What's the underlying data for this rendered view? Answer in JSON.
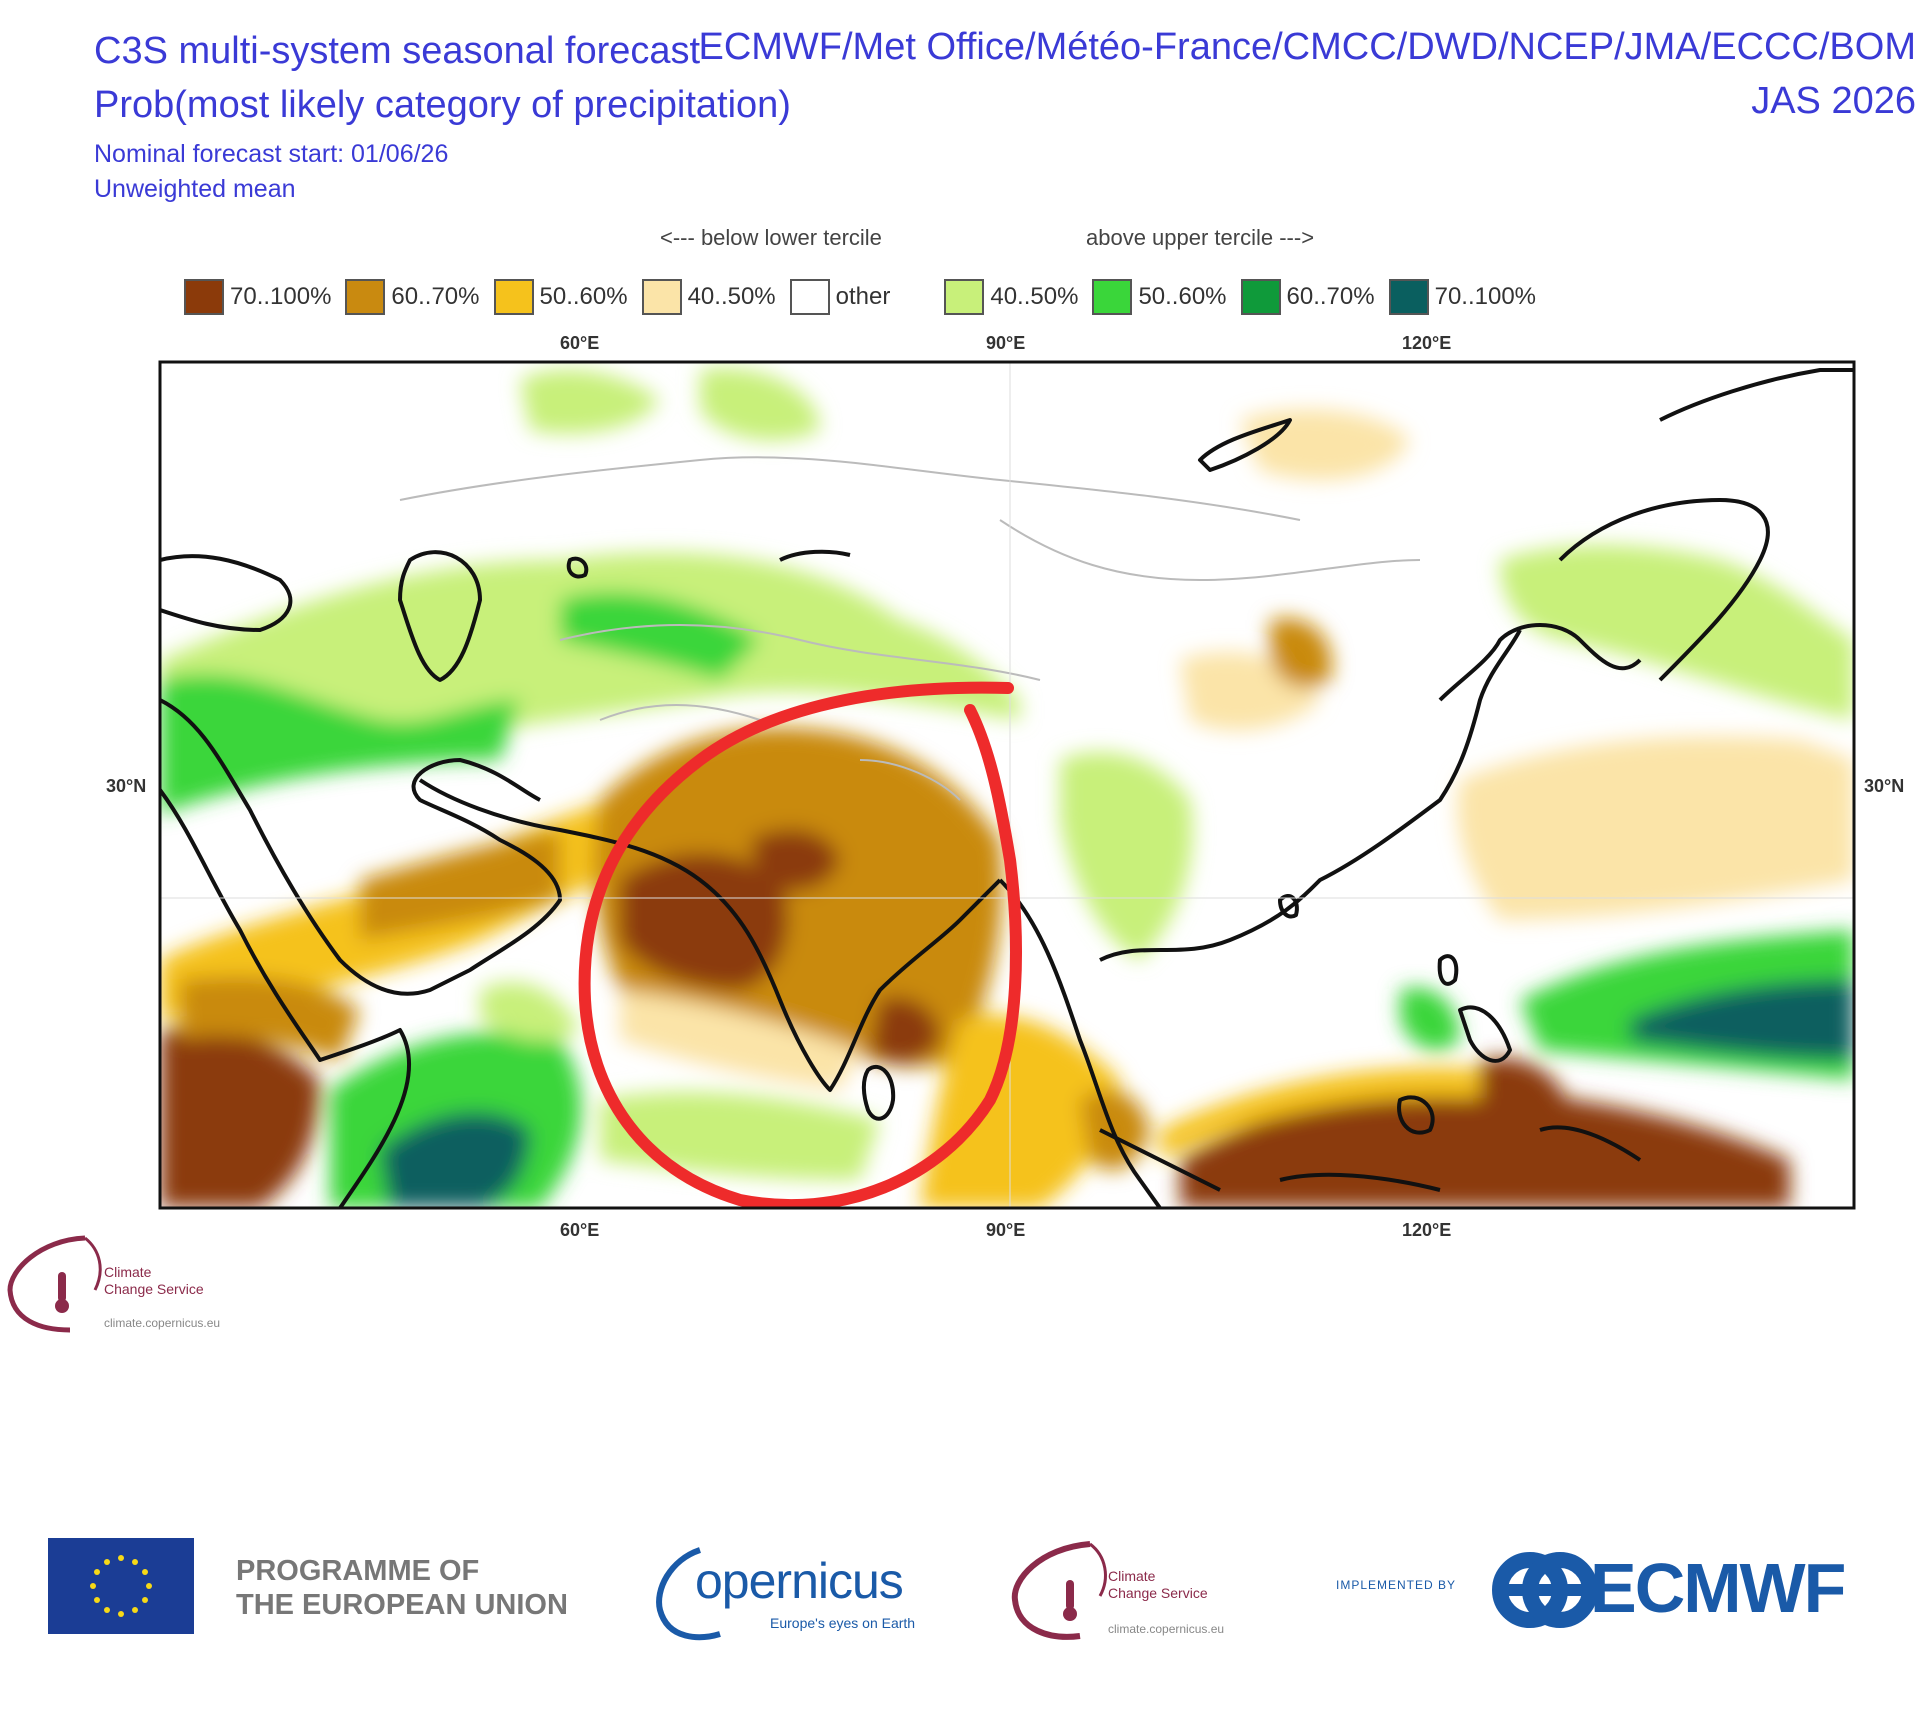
{
  "header": {
    "title_line1": "C3S multi-system seasonal forecast",
    "title_line2": "Prob(most likely category of precipitation)",
    "forecast_start": "Nominal forecast start: 01/06/26",
    "mean_type": "Unweighted mean",
    "systems": "ECMWF/Met Office/Météo-France/CMCC/DWD/NCEP/JMA/ECCC/BOM",
    "season": "JAS 2026"
  },
  "legend": {
    "below_label": "<--- below lower tercile",
    "above_label": "above upper tercile --->",
    "items": [
      {
        "label": "70..100%",
        "color": "#8b3a0a"
      },
      {
        "label": "60..70%",
        "color": "#c98a10"
      },
      {
        "label": "50..60%",
        "color": "#f5c21c"
      },
      {
        "label": "40..50%",
        "color": "#fbe4a8"
      },
      {
        "label": "other",
        "color": "#ffffff"
      },
      {
        "label": "40..50%",
        "color": "#c8f07a"
      },
      {
        "label": "50..60%",
        "color": "#3ad63a"
      },
      {
        "label": "60..70%",
        "color": "#0f9a3a"
      },
      {
        "label": "70..100%",
        "color": "#0a5f5f"
      }
    ]
  },
  "map": {
    "lon_ticks": [
      "60°E",
      "90°E",
      "120°E"
    ],
    "lat_ticks": [
      "30°N"
    ],
    "annotation_color": "#ee2b2b"
  },
  "branding": {
    "c3s_name_line1": "Climate",
    "c3s_name_line2": "Change Service",
    "c3s_url": "climate.copernicus.eu",
    "eu_line1": "PROGRAMME OF",
    "eu_line2": "THE EUROPEAN UNION",
    "copernicus": "opernicus",
    "copernicus_tagline": "Europe's eyes on Earth",
    "implemented_by": "IMPLEMENTED BY",
    "ecmwf": "ECMWF"
  }
}
